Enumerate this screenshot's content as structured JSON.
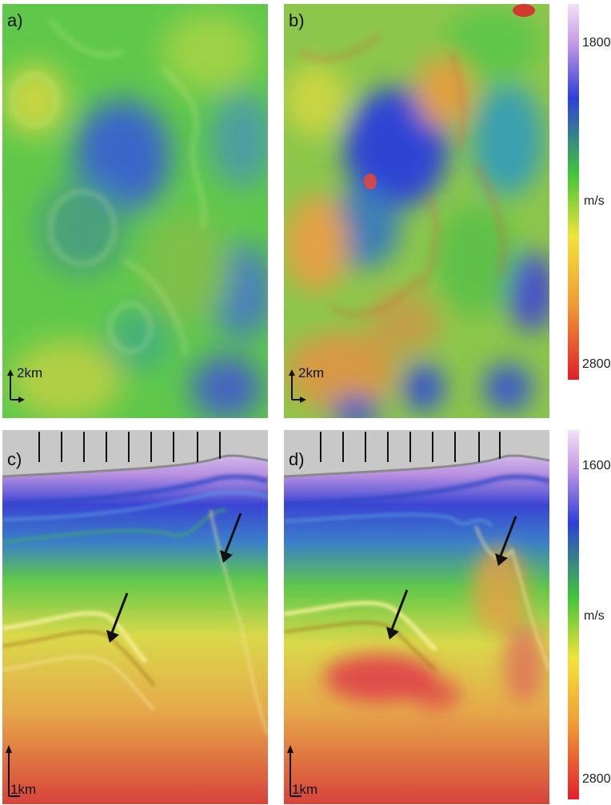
{
  "panels": [
    {
      "label": "a)",
      "scale_text": "2km",
      "arrow_icons": []
    },
    {
      "label": "b)",
      "scale_text": "2km",
      "arrow_icons": []
    },
    {
      "label": "c)",
      "scale_text": "1km",
      "arrow_icons": [
        "arrow-icon",
        "arrow-icon"
      ]
    },
    {
      "label": "d)",
      "scale_text": "1km",
      "arrow_icons": [
        "arrow-icon",
        "arrow-icon"
      ]
    }
  ],
  "colorbars": [
    {
      "top": "1800",
      "unit": "m/s",
      "bottom": "2800"
    },
    {
      "top": "1600",
      "unit": "m/s",
      "bottom": "2800"
    }
  ],
  "colors": {
    "purple": "#c99ce6",
    "blue": "#2f3fd8",
    "green": "#3fc43a",
    "yellow": "#f2e33a",
    "orange": "#f09a35",
    "red": "#e0202c",
    "sky": "#c8c8c8"
  }
}
